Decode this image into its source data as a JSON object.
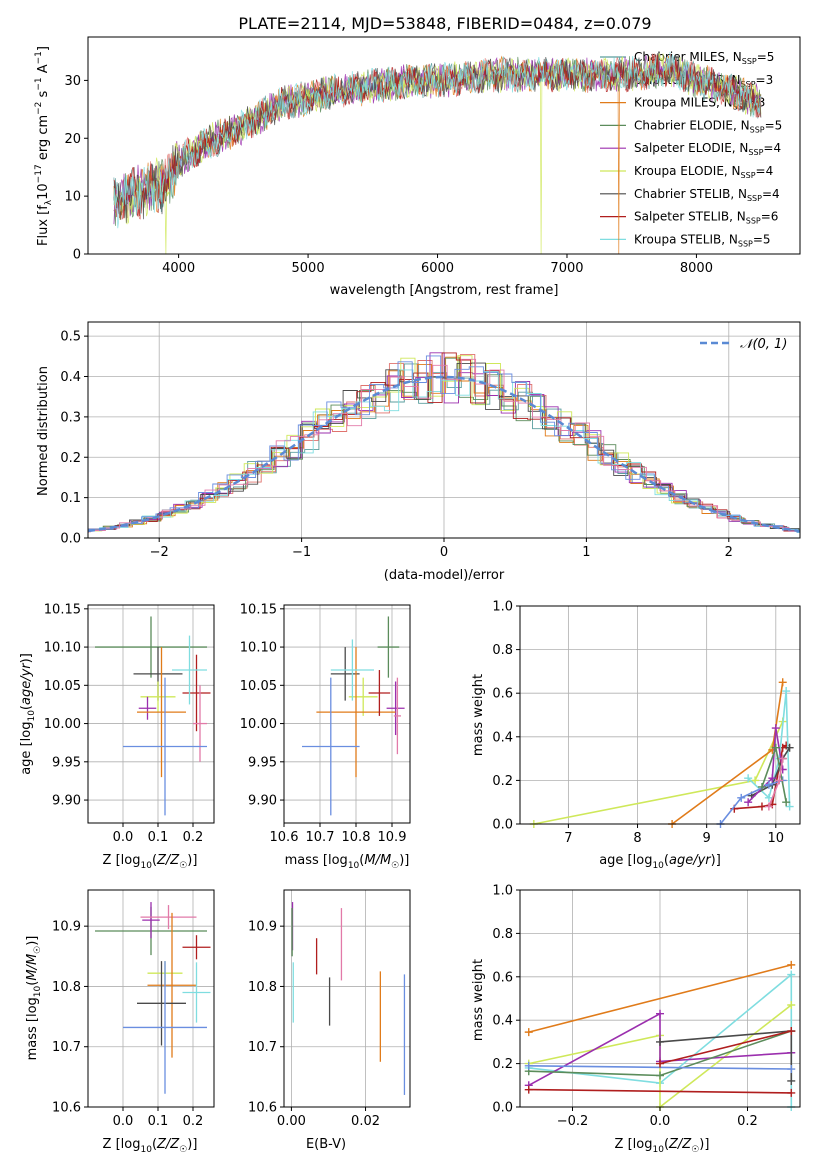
{
  "title": "PLATE=2114, MJD=53848, FIBERID=0484, z=0.079",
  "colors": {
    "Chabrier MILES": "#5a9e9e",
    "Salpeter MILES": "#e0736e",
    "Kroupa MILES": "#e07b1a",
    "Chabrier ELODIE": "#5b8c5b",
    "Salpeter ELODIE": "#9b2fae",
    "Kroupa ELODIE": "#cfe85a",
    "Chabrier STELIB": "#4a4a4a",
    "Salpeter STELIB": "#b01e1e",
    "Kroupa STELIB": "#7fdde0",
    "blue": "#6a8ee0",
    "pink": "#e27aa8"
  },
  "chart_data": [
    {
      "type": "line",
      "panel": "spectrum",
      "xlabel": "wavelength [Angstrom, rest frame]",
      "ylabel": "Flux [f_λ 10^-17 erg cm^-2 s^-1 A^-1]",
      "xlim": [
        3300,
        8800
      ],
      "ylim": [
        0,
        37.5
      ],
      "xticks": [
        4000,
        5000,
        6000,
        7000,
        8000
      ],
      "yticks": [
        0,
        10,
        20,
        30
      ],
      "legend_position": "right",
      "series": [
        {
          "name": "Chabrier MILES, N_SSP=5",
          "label_main": "Chabrier MILES, N",
          "sub": "SSP",
          "suffix": "=5",
          "color_key": "Chabrier MILES"
        },
        {
          "name": "Salpeter MILES, N_SSP=3",
          "label_main": "Salpeter MILES, N",
          "sub": "SSP",
          "suffix": "=3",
          "color_key": "Salpeter MILES"
        },
        {
          "name": "Kroupa MILES, N_SSP=3",
          "label_main": "Kroupa MILES, N",
          "sub": "SSP",
          "suffix": "=3",
          "color_key": "Kroupa MILES"
        },
        {
          "name": "Chabrier ELODIE, N_SSP=5",
          "label_main": "Chabrier ELODIE, N",
          "sub": "SSP",
          "suffix": "=5",
          "color_key": "Chabrier ELODIE"
        },
        {
          "name": "Salpeter ELODIE, N_SSP=4",
          "label_main": "Salpeter ELODIE, N",
          "sub": "SSP",
          "suffix": "=4",
          "color_key": "Salpeter ELODIE"
        },
        {
          "name": "Kroupa ELODIE, N_SSP=4",
          "label_main": "Kroupa ELODIE, N",
          "sub": "SSP",
          "suffix": "=4",
          "color_key": "Kroupa ELODIE"
        },
        {
          "name": "Chabrier STELIB, N_SSP=4",
          "label_main": "Chabrier STELIB, N",
          "sub": "SSP",
          "suffix": "=4",
          "color_key": "Chabrier STELIB"
        },
        {
          "name": "Salpeter STELIB, N_SSP=6",
          "label_main": "Salpeter STELIB, N",
          "sub": "SSP",
          "suffix": "=6",
          "color_key": "Salpeter STELIB"
        },
        {
          "name": "Kroupa STELIB, N_SSP=5",
          "label_main": "Kroupa STELIB, N",
          "sub": "SSP",
          "suffix": "=5",
          "color_key": "Kroupa STELIB"
        }
      ],
      "spectrum_shape": {
        "continuum": [
          [
            3500,
            9
          ],
          [
            3700,
            11
          ],
          [
            3900,
            12
          ],
          [
            4000,
            16
          ],
          [
            4200,
            19
          ],
          [
            4500,
            22
          ],
          [
            4800,
            26
          ],
          [
            5200,
            28
          ],
          [
            5500,
            29
          ],
          [
            5800,
            30
          ],
          [
            6000,
            30
          ],
          [
            6500,
            31
          ],
          [
            7000,
            31
          ],
          [
            7200,
            31
          ],
          [
            7500,
            31
          ],
          [
            7800,
            32
          ],
          [
            8000,
            30
          ],
          [
            8300,
            28
          ],
          [
            8500,
            26
          ]
        ],
        "wavelength_range": [
          3500,
          8500
        ],
        "spikes_to_zero": [
          [
            3900,
            "Kroupa ELODIE"
          ],
          [
            6800,
            "Kroupa ELODIE"
          ],
          [
            7400,
            "Kroupa MILES"
          ]
        ]
      }
    },
    {
      "type": "histogram",
      "panel": "residuals",
      "xlabel": "(data-model)/error",
      "ylabel": "Normed distribution",
      "xlim": [
        -2.5,
        2.5
      ],
      "ylim": [
        0,
        0.535
      ],
      "xticks": [
        -2,
        -1,
        0,
        1,
        2
      ],
      "yticks": [
        0.0,
        0.1,
        0.2,
        0.3,
        0.4,
        0.5
      ],
      "grid": true,
      "legend": "𝒩(0, 1)",
      "legend_position": "top-right",
      "bin_width": 0.1,
      "reference_curve": "normal",
      "reference_color": "#5a8ad4"
    },
    {
      "type": "scatter",
      "panel": "age-vs-Z",
      "xlabel": "Z [log10(Z/Z☉)]",
      "ylabel": "age [log10(age/yr)]",
      "xlim": [
        -0.1,
        0.26
      ],
      "ylim": [
        9.87,
        10.155
      ],
      "xticks": [
        0.0,
        0.1,
        0.2
      ],
      "yticks": [
        9.9,
        9.95,
        10.0,
        10.05,
        10.1,
        10.15
      ],
      "points": [
        {
          "c": "Chabrier ELODIE",
          "x": 0.08,
          "xerr": 0.16,
          "y": 10.1,
          "yerr": 0.04
        },
        {
          "c": "Chabrier STELIB",
          "x": 0.1,
          "xerr": 0.07,
          "y": 10.065,
          "yerr": 0.035
        },
        {
          "c": "Kroupa ELODIE",
          "x": 0.1,
          "xerr": 0.05,
          "y": 10.035,
          "yerr": 0.02
        },
        {
          "c": "Salpeter ELODIE",
          "x": 0.07,
          "xerr": 0.025,
          "y": 10.02,
          "yerr": 0.015
        },
        {
          "c": "Kroupa MILES",
          "x": 0.11,
          "xerr": 0.07,
          "y": 10.015,
          "yerr": 0.085
        },
        {
          "c": "Salpeter STELIB",
          "x": 0.21,
          "xerr": 0.04,
          "y": 10.04,
          "yerr": 0.05
        },
        {
          "c": "Kroupa STELIB",
          "x": 0.19,
          "xerr": 0.05,
          "y": 10.07,
          "yerr": 0.045
        },
        {
          "c": "pink",
          "x": 0.22,
          "xerr": 0.02,
          "y": 10.0,
          "yerr": 0.05
        },
        {
          "c": "blue",
          "x": 0.12,
          "xerr": 0.12,
          "y": 9.97,
          "yerr": 0.09
        }
      ]
    },
    {
      "type": "scatter",
      "panel": "age-vs-mass",
      "xlabel": "mass [log10(M/M☉)]",
      "ylabel": "",
      "xlim": [
        10.6,
        10.95
      ],
      "ylim": [
        9.87,
        10.155
      ],
      "xticks": [
        10.6,
        10.7,
        10.8,
        10.9
      ],
      "yticks": [
        9.9,
        9.95,
        10.0,
        10.05,
        10.1,
        10.15
      ],
      "points": [
        {
          "c": "Chabrier ELODIE",
          "x": 10.89,
          "xerr": 0.03,
          "y": 10.1,
          "yerr": 0.04
        },
        {
          "c": "Chabrier STELIB",
          "x": 10.77,
          "xerr": 0.04,
          "y": 10.065,
          "yerr": 0.035
        },
        {
          "c": "Kroupa ELODIE",
          "x": 10.82,
          "xerr": 0.04,
          "y": 10.035,
          "yerr": 0.025
        },
        {
          "c": "Salpeter ELODIE",
          "x": 10.91,
          "xerr": 0.025,
          "y": 10.02,
          "yerr": 0.035
        },
        {
          "c": "Kroupa MILES",
          "x": 10.8,
          "xerr": 0.11,
          "y": 10.015,
          "yerr": 0.085
        },
        {
          "c": "Salpeter STELIB",
          "x": 10.865,
          "xerr": 0.03,
          "y": 10.04,
          "yerr": 0.03
        },
        {
          "c": "Kroupa STELIB",
          "x": 10.79,
          "xerr": 0.06,
          "y": 10.07,
          "yerr": 0.04
        },
        {
          "c": "pink",
          "x": 10.915,
          "xerr": 0.01,
          "y": 10.01,
          "yerr": 0.05
        },
        {
          "c": "blue",
          "x": 10.73,
          "xerr": 0.08,
          "y": 9.97,
          "yerr": 0.09
        }
      ]
    },
    {
      "type": "line",
      "panel": "mass-weight-vs-age",
      "xlabel": "age [log10(age/yr)]",
      "ylabel": "mass weight",
      "xlim": [
        6.3,
        10.35
      ],
      "ylim": [
        0.0,
        1.0
      ],
      "xticks": [
        7,
        8,
        9,
        10
      ],
      "yticks": [
        0.0,
        0.2,
        0.4,
        0.6,
        0.8,
        1.0
      ],
      "grid": true,
      "series": [
        {
          "c": "Kroupa ELODIE",
          "x": [
            6.5,
            9.7,
            10.1
          ],
          "y": [
            0.0,
            0.2,
            0.47
          ]
        },
        {
          "c": "Kroupa MILES",
          "x": [
            8.5,
            9.95,
            10.1
          ],
          "y": [
            0.0,
            0.34,
            0.65
          ]
        },
        {
          "c": "Salpeter STELIB",
          "x": [
            9.4,
            9.8,
            9.95,
            10.1,
            10.15
          ],
          "y": [
            0.07,
            0.08,
            0.09,
            0.35,
            0.36
          ]
        },
        {
          "c": "Kroupa STELIB",
          "x": [
            9.6,
            9.9,
            10.05,
            10.15,
            10.2
          ],
          "y": [
            0.21,
            0.12,
            0.3,
            0.61,
            0.08
          ]
        },
        {
          "c": "Chabrier STELIB",
          "x": [
            9.65,
            9.95,
            10.1,
            10.2
          ],
          "y": [
            0.13,
            0.18,
            0.3,
            0.35
          ]
        },
        {
          "c": "Salpeter ELODIE",
          "x": [
            9.6,
            9.95,
            10.0,
            10.1
          ],
          "y": [
            0.1,
            0.21,
            0.44,
            0.25
          ]
        },
        {
          "c": "blue",
          "x": [
            9.2,
            9.5,
            9.9,
            10.1
          ],
          "y": [
            0.0,
            0.12,
            0.18,
            0.2
          ]
        },
        {
          "c": "Chabrier ELODIE",
          "x": [
            9.8,
            10.0,
            10.15
          ],
          "y": [
            0.17,
            0.35,
            0.1
          ]
        },
        {
          "c": "pink",
          "x": [
            9.9,
            10.05,
            10.1
          ],
          "y": [
            0.08,
            0.2,
            0.3
          ]
        }
      ]
    },
    {
      "type": "scatter",
      "panel": "mass-vs-Z",
      "xlabel": "Z [log10(Z/Z☉)]",
      "ylabel": "mass [log10(M/M☉)]",
      "xlim": [
        -0.1,
        0.26
      ],
      "ylim": [
        10.6,
        10.96
      ],
      "xticks": [
        0.0,
        0.1,
        0.2
      ],
      "yticks": [
        10.6,
        10.7,
        10.8,
        10.9
      ],
      "points": [
        {
          "c": "Chabrier ELODIE",
          "x": 0.08,
          "xerr": 0.16,
          "y": 10.892,
          "yerr": 0.04
        },
        {
          "c": "Salpeter ELODIE",
          "x": 0.08,
          "xerr": 0.025,
          "y": 10.91,
          "yerr": 0.03
        },
        {
          "c": "pink",
          "x": 0.13,
          "xerr": 0.08,
          "y": 10.915,
          "yerr": 0.02
        },
        {
          "c": "Salpeter STELIB",
          "x": 0.21,
          "xerr": 0.04,
          "y": 10.865,
          "yerr": 0.02
        },
        {
          "c": "Kroupa ELODIE",
          "x": 0.12,
          "xerr": 0.05,
          "y": 10.822,
          "yerr": 0.02
        },
        {
          "c": "Kroupa MILES",
          "x": 0.14,
          "xerr": 0.07,
          "y": 10.802,
          "yerr": 0.12
        },
        {
          "c": "Kroupa STELIB",
          "x": 0.21,
          "xerr": 0.04,
          "y": 10.79,
          "yerr": 0.05
        },
        {
          "c": "Chabrier STELIB",
          "x": 0.11,
          "xerr": 0.07,
          "y": 10.772,
          "yerr": 0.07
        },
        {
          "c": "blue",
          "x": 0.12,
          "xerr": 0.12,
          "y": 10.732,
          "yerr": 0.11
        }
      ]
    },
    {
      "type": "scatter",
      "panel": "mass-vs-EBV",
      "xlabel": "E(B-V)",
      "ylabel": "",
      "xlim": [
        -0.002,
        0.032
      ],
      "ylim": [
        10.6,
        10.96
      ],
      "xticks": [
        0.0,
        0.02
      ],
      "yticks": [
        10.6,
        10.7,
        10.8,
        10.9
      ],
      "points": [
        {
          "c": "Salpeter ELODIE",
          "x": 0.0003,
          "xerr": 0,
          "y": 10.9,
          "yerr": 0.04
        },
        {
          "c": "Kroupa STELIB",
          "x": 0.0005,
          "xerr": 0,
          "y": 10.79,
          "yerr": 0.05
        },
        {
          "c": "Chabrier ELODIE",
          "x": 0.0002,
          "xerr": 0,
          "y": 10.89,
          "yerr": 0.04
        },
        {
          "c": "Salpeter STELIB",
          "x": 0.0068,
          "xerr": 0,
          "y": 10.85,
          "yerr": 0.03
        },
        {
          "c": "Chabrier STELIB",
          "x": 0.0103,
          "xerr": 0,
          "y": 10.775,
          "yerr": 0.04
        },
        {
          "c": "pink",
          "x": 0.0135,
          "xerr": 0,
          "y": 10.87,
          "yerr": 0.06
        },
        {
          "c": "Kroupa MILES",
          "x": 0.024,
          "xerr": 0,
          "y": 10.75,
          "yerr": 0.075
        },
        {
          "c": "blue",
          "x": 0.0305,
          "xerr": 0,
          "y": 10.72,
          "yerr": 0.1
        }
      ]
    },
    {
      "type": "line",
      "panel": "mass-weight-vs-Z",
      "xlabel": "Z [log10(Z/Z☉)]",
      "ylabel": "mass weight",
      "xlim": [
        -0.32,
        0.32
      ],
      "ylim": [
        0.0,
        1.0
      ],
      "xticks": [
        -0.2,
        0.0,
        0.2
      ],
      "yticks": [
        0.0,
        0.2,
        0.4,
        0.6,
        0.8,
        1.0
      ],
      "grid": true,
      "series": [
        {
          "c": "Kroupa MILES",
          "x": [
            -0.3,
            0.3
          ],
          "y": [
            0.345,
            0.655
          ]
        },
        {
          "c": "Kroupa STELIB",
          "x": [
            -0.3,
            0.0,
            0.3,
            0.3
          ],
          "y": [
            0.18,
            0.11,
            0.61,
            0.0
          ]
        },
        {
          "c": "Kroupa ELODIE",
          "x": [
            -0.3,
            0.0,
            0.0,
            0.3
          ],
          "y": [
            0.2,
            0.33,
            0.0,
            0.47
          ]
        },
        {
          "c": "Salpeter ELODIE",
          "x": [
            -0.3,
            0.0,
            0.0,
            0.3
          ],
          "y": [
            0.1,
            0.43,
            0.21,
            0.25
          ]
        },
        {
          "c": "Chabrier STELIB",
          "x": [
            0.0,
            0.3,
            0.3
          ],
          "y": [
            0.3,
            0.35,
            0.12
          ]
        },
        {
          "c": "Chabrier ELODIE",
          "x": [
            -0.3,
            0.0,
            0.3
          ],
          "y": [
            0.165,
            0.145,
            0.35
          ]
        },
        {
          "c": "blue",
          "x": [
            -0.3,
            0.3
          ],
          "y": [
            0.19,
            0.175
          ]
        },
        {
          "c": "Salpeter STELIB",
          "x": [
            -0.3,
            0.3
          ],
          "y": [
            0.08,
            0.065
          ]
        },
        {
          "c": "Salpeter STELIB",
          "x": [
            0.0,
            0.3
          ],
          "y": [
            0.2,
            0.35
          ]
        }
      ]
    }
  ]
}
